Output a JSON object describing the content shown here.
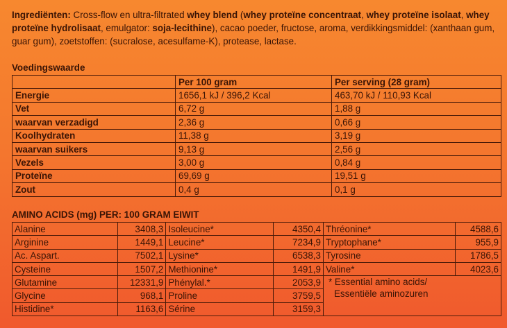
{
  "ingredients": {
    "label": "Ingrediënten:",
    "t1": " Cross-flow en ultra-filtrated ",
    "b1": "whey blend",
    "t2": " (",
    "b2": "whey proteïne concentraat",
    "t3": ", ",
    "b3": "whey proteïne isolaat",
    "t4": ", ",
    "b4": "whey proteïne hydrolisaat",
    "t5": ", emulgator: ",
    "b5": "soja-lecithine",
    "t6": "), cacao poeder, fructose, aroma, verdikkingsmiddel: (xanthaan gum, guar gum), zoetstoffen: (sucralose, acesulfame-K), protease, lactase."
  },
  "nutrition": {
    "title": "Voedingswaarde",
    "col_100": "Per 100 gram",
    "col_serving": "Per serving (28 gram)",
    "rows": [
      {
        "name": "Energie",
        "per100": "1656,1 kJ / 396,2 Kcal",
        "serving": "463,70 kJ / 110,93 Kcal"
      },
      {
        "name": "Vet",
        "per100": "6,72 g",
        "serving": "1,88 g"
      },
      {
        "name": "waarvan verzadigd",
        "per100": "2,36 g",
        "serving": "0,66 g"
      },
      {
        "name": "Koolhydraten",
        "per100": "11,38 g",
        "serving": "3,19 g"
      },
      {
        "name": "waarvan suikers",
        "per100": "9,13 g",
        "serving": "2,56 g"
      },
      {
        "name": "Vezels",
        "per100": "3,00 g",
        "serving": "0,84 g"
      },
      {
        "name": "Proteïne",
        "per100": "69,69 g",
        "serving": "19,51 g"
      },
      {
        "name": "Zout",
        "per100": "0,4 g",
        "serving": "0,1 g"
      }
    ]
  },
  "amino": {
    "title": "AMINO ACIDS (mg) PER: 100 GRAM EIWIT",
    "rows": [
      {
        "a": "Alanine",
        "av": "3408,3",
        "b": "Isoleucine*",
        "bv": "4350,4",
        "c": "Thréonine*",
        "cv": "4588,6"
      },
      {
        "a": "Arginine",
        "av": "1449,1",
        "b": "Leucine*",
        "bv": "7234,9",
        "c": "Tryptophane*",
        "cv": "955,9"
      },
      {
        "a": "Ac. Aspart.",
        "av": "7502,1",
        "b": "Lysine*",
        "bv": "6538,3",
        "c": "Tyrosine",
        "cv": "1786,5"
      },
      {
        "a": "Cysteine",
        "av": "1507,2",
        "b": "Methionine*",
        "bv": "1491,9",
        "c": "Valine*",
        "cv": "4023,6"
      },
      {
        "a": "Glutamine",
        "av": "12331,9",
        "b": "Phénylal.*",
        "bv": "2053,9"
      },
      {
        "a": "Glycine",
        "av": "968,1",
        "b": "Proline",
        "bv": "3759,5"
      },
      {
        "a": "Histidine*",
        "av": "1163,6",
        "b": "Sérine",
        "bv": "3159,3"
      }
    ],
    "footnote_line1": "* Essential amino acids/",
    "footnote_line2": "Essentiële aminozuren"
  }
}
